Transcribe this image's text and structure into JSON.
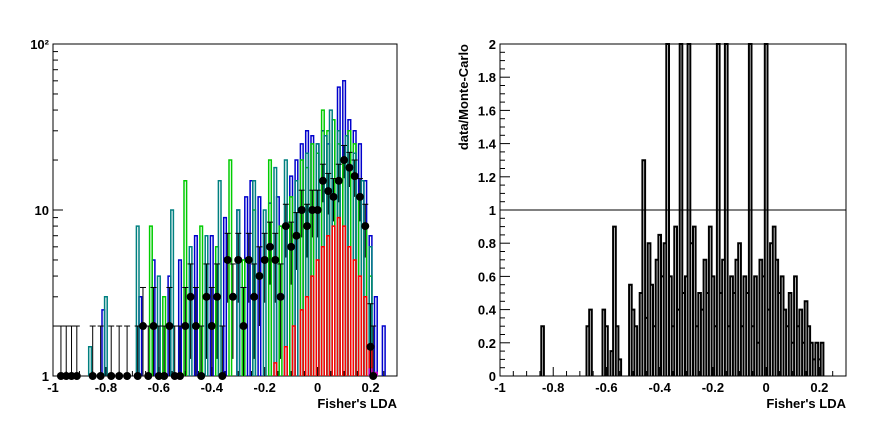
{
  "chart_data": [
    {
      "type": "histogram",
      "xlabel": "Fisher's LDA",
      "ylabel": "",
      "xlim": [
        -1.0,
        0.3
      ],
      "ylim": [
        1,
        100
      ],
      "yscale": "log",
      "grid": false,
      "xticks": [
        -1,
        -0.8,
        -0.6,
        -0.4,
        -0.2,
        0,
        0.2
      ],
      "xtick_labels": [
        "-1",
        "-0.8",
        "-0.6",
        "-0.4",
        "-0.2",
        "0",
        "0.2"
      ],
      "yticks": [
        1,
        10,
        100
      ],
      "ytick_labels": [
        "1",
        "10",
        "10²"
      ],
      "bin_width": 0.01,
      "series": [
        {
          "kind": "step",
          "color": "#0000cc",
          "x": [
            -0.81,
            -0.67,
            -0.62,
            -0.56,
            -0.52,
            -0.46,
            -0.4,
            -0.35,
            -0.3,
            -0.27,
            -0.25,
            -0.22,
            -0.18,
            -0.15,
            -0.12,
            -0.1,
            -0.08,
            -0.06,
            -0.04,
            -0.02,
            0.0,
            0.02,
            0.04,
            0.06,
            0.08,
            0.1,
            0.12,
            0.14,
            0.16,
            0.18,
            0.2,
            0.22,
            0.25
          ],
          "y": [
            2.5,
            3,
            5,
            4,
            5,
            7,
            7,
            9,
            10,
            12,
            15,
            12,
            11,
            12,
            8,
            16,
            20,
            25,
            30,
            28,
            25,
            30,
            25,
            35,
            55,
            60,
            35,
            30,
            25,
            15,
            7,
            3,
            2
          ]
        },
        {
          "kind": "step",
          "color": "#00cc00",
          "x": [
            -0.63,
            -0.58,
            -0.5,
            -0.44,
            -0.38,
            -0.33,
            -0.28,
            -0.24,
            -0.18,
            -0.14,
            -0.1,
            -0.06,
            -0.04,
            -0.02,
            0.0,
            0.02,
            0.04,
            0.06,
            0.08,
            0.1,
            0.12,
            0.14,
            0.16,
            0.18,
            0.2
          ],
          "y": [
            8,
            3,
            15,
            8,
            6,
            20,
            5,
            10,
            20,
            8,
            12,
            20,
            18,
            25,
            22,
            40,
            30,
            35,
            25,
            20,
            30,
            25,
            12,
            8,
            4
          ]
        },
        {
          "kind": "step",
          "color": "#008080",
          "x": [
            -0.86,
            -0.8,
            -0.68,
            -0.6,
            -0.55,
            -0.48,
            -0.42,
            -0.37,
            -0.3,
            -0.24,
            -0.2,
            -0.16,
            -0.12,
            -0.08,
            -0.04,
            0.0,
            0.03,
            0.05,
            0.08,
            0.11,
            0.14,
            0.17,
            0.2
          ],
          "y": [
            1.5,
            3,
            8,
            4,
            10,
            6,
            7,
            15,
            10,
            15,
            10,
            18,
            20,
            15,
            22,
            25,
            28,
            40,
            30,
            28,
            22,
            15,
            6
          ]
        },
        {
          "kind": "step",
          "color": "#ff0000",
          "x": [
            -0.16,
            -0.12,
            -0.09,
            -0.06,
            -0.04,
            -0.02,
            0.0,
            0.02,
            0.04,
            0.06,
            0.08,
            0.1,
            0.12,
            0.14,
            0.16,
            0.18,
            0.2
          ],
          "y": [
            1.2,
            1.5,
            2,
            2.5,
            3,
            4,
            5,
            6,
            7,
            8,
            9,
            8,
            6,
            5,
            4,
            3,
            1.5
          ]
        },
        {
          "kind": "step",
          "color": "#cc00cc",
          "x": [
            0.2,
            0.22
          ],
          "y": [
            1.1,
            1.05
          ]
        },
        {
          "kind": "points",
          "color": "#000000",
          "x": [
            -0.97,
            -0.95,
            -0.93,
            -0.91,
            -0.85,
            -0.82,
            -0.78,
            -0.75,
            -0.72,
            -0.68,
            -0.66,
            -0.64,
            -0.62,
            -0.6,
            -0.58,
            -0.56,
            -0.54,
            -0.52,
            -0.5,
            -0.48,
            -0.46,
            -0.44,
            -0.42,
            -0.4,
            -0.38,
            -0.36,
            -0.34,
            -0.32,
            -0.3,
            -0.28,
            -0.26,
            -0.24,
            -0.22,
            -0.2,
            -0.18,
            -0.16,
            -0.14,
            -0.12,
            -0.1,
            -0.08,
            -0.06,
            -0.04,
            -0.02,
            0.0,
            0.02,
            0.04,
            0.06,
            0.08,
            0.1,
            0.12,
            0.14,
            0.16,
            0.18,
            0.2,
            0.21
          ],
          "y": [
            1,
            1,
            1,
            1,
            1,
            1,
            1,
            1,
            1,
            1,
            2,
            1,
            2,
            1,
            1,
            2,
            1,
            1,
            2,
            3,
            2,
            1,
            3,
            2,
            3,
            1,
            5,
            3,
            5,
            2,
            5,
            3,
            4,
            5,
            6,
            5,
            3,
            8,
            6,
            7,
            10,
            8,
            10,
            10,
            15,
            13,
            12,
            15,
            20,
            18,
            16,
            12,
            8,
            1.5,
            1
          ]
        }
      ]
    },
    {
      "type": "histogram",
      "xlabel": "Fisher's LDA",
      "ylabel": "data/Monte-Carlo",
      "xlim": [
        -1.0,
        0.3
      ],
      "ylim": [
        0,
        2
      ],
      "grid": false,
      "reference_line": 1,
      "xticks": [
        -1,
        -0.8,
        -0.6,
        -0.4,
        -0.2,
        0,
        0.2
      ],
      "xtick_labels": [
        "-1",
        "-0.8",
        "-0.6",
        "-0.4",
        "-0.2",
        "0",
        "0.2"
      ],
      "yticks": [
        0,
        0.2,
        0.4,
        0.6,
        0.8,
        1,
        1.2,
        1.4,
        1.6,
        1.8,
        2
      ],
      "ytick_labels": [
        "0",
        "0.2",
        "0.4",
        "0.6",
        "0.8",
        "1",
        "1.2",
        "1.4",
        "1.6",
        "1.8",
        "2"
      ],
      "bin_width": 0.01,
      "series": [
        {
          "kind": "step",
          "color": "#000000",
          "x": [
            -0.84,
            -0.67,
            -0.66,
            -0.61,
            -0.6,
            -0.58,
            -0.57,
            -0.56,
            -0.55,
            -0.51,
            -0.5,
            -0.49,
            -0.47,
            -0.46,
            -0.45,
            -0.44,
            -0.43,
            -0.42,
            -0.41,
            -0.4,
            -0.39,
            -0.38,
            -0.37,
            -0.36,
            -0.35,
            -0.34,
            -0.33,
            -0.32,
            -0.31,
            -0.3,
            -0.29,
            -0.28,
            -0.27,
            -0.26,
            -0.25,
            -0.24,
            -0.23,
            -0.22,
            -0.21,
            -0.2,
            -0.19,
            -0.18,
            -0.17,
            -0.16,
            -0.15,
            -0.14,
            -0.13,
            -0.12,
            -0.11,
            -0.1,
            -0.09,
            -0.08,
            -0.07,
            -0.06,
            -0.05,
            -0.04,
            -0.03,
            -0.02,
            -0.01,
            0.0,
            0.01,
            0.02,
            0.03,
            0.04,
            0.05,
            0.06,
            0.07,
            0.08,
            0.09,
            0.1,
            0.11,
            0.12,
            0.13,
            0.14,
            0.15,
            0.16,
            0.17,
            0.18,
            0.19,
            0.2,
            0.21
          ],
          "y": [
            0.3,
            0.3,
            0.4,
            0.4,
            0.3,
            0.15,
            0.9,
            0.3,
            0.1,
            0.55,
            0.4,
            0.3,
            0.5,
            1.3,
            0.35,
            0.8,
            0.55,
            0.3,
            0.7,
            0.85,
            0.6,
            0.8,
            2,
            0.6,
            0.3,
            0.9,
            0.4,
            2,
            0.5,
            0.6,
            2,
            0.8,
            0.9,
            0.3,
            0.5,
            0.4,
            0.7,
            0.5,
            0.9,
            0.6,
            0.3,
            2,
            0.5,
            0.7,
            2,
            0.3,
            0.6,
            0.5,
            0.7,
            0.8,
            0.3,
            0.6,
            0.5,
            2,
            0.3,
            0.6,
            0.2,
            0.7,
            0.6,
            2,
            0.4,
            0.8,
            0.9,
            0.7,
            0.5,
            0.6,
            0.4,
            0.3,
            0.5,
            0.2,
            0.6,
            0.3,
            0.4,
            0.2,
            0.45,
            0.3,
            0.2,
            0.1,
            0.2,
            0.1,
            0.2
          ]
        }
      ]
    }
  ]
}
